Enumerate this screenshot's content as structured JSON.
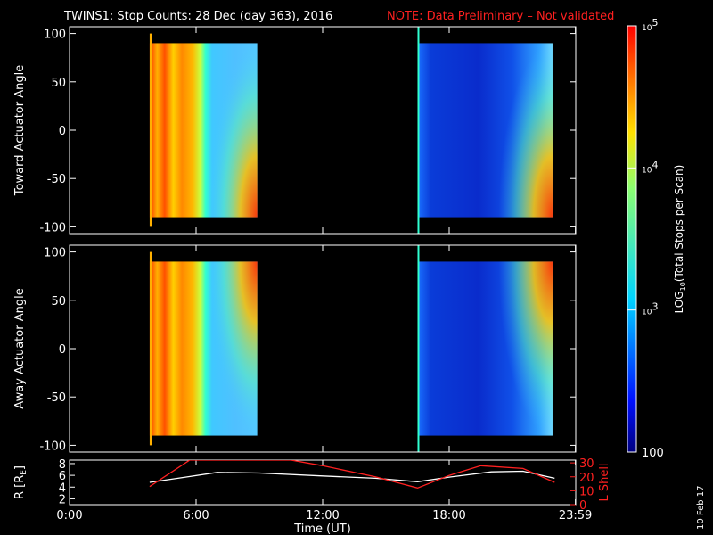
{
  "header": {
    "title": "TWINS1: Stop Counts: 28 Dec (day 363), 2016",
    "note": "NOTE: Data Preliminary – Not validated",
    "note_color": "#ff2020"
  },
  "side_label": "10 Feb 17",
  "chart_data": [
    {
      "type": "heatmap",
      "ylabel": "Toward Actuator Angle",
      "x_range_hours": [
        0,
        24
      ],
      "ylim": [
        -107,
        107
      ],
      "yticks": [
        100,
        50,
        0,
        -50,
        -100
      ],
      "data_blocks": [
        {
          "start_hour": 3.8,
          "end_hour": 8.9,
          "level": "high"
        },
        {
          "start_hour": 16.5,
          "end_hour": 22.9,
          "level": "low"
        }
      ]
    },
    {
      "type": "heatmap",
      "ylabel": "Away Actuator Angle",
      "x_range_hours": [
        0,
        24
      ],
      "ylim": [
        -107,
        107
      ],
      "yticks": [
        100,
        50,
        0,
        -50,
        -100
      ],
      "data_blocks": [
        {
          "start_hour": 3.8,
          "end_hour": 8.9,
          "level": "high"
        },
        {
          "start_hour": 16.5,
          "end_hour": 22.9,
          "level": "low"
        }
      ]
    },
    {
      "type": "line",
      "xlabel": "Time (UT)",
      "x_tick_labels": [
        "0:00",
        "6:00",
        "12:00",
        "18:00",
        "23:59"
      ],
      "x_tick_hours": [
        0,
        6,
        12,
        18,
        23.983
      ],
      "left_axis": {
        "label": "R [R",
        "label_sub": "E",
        "label_end": "]",
        "ticks": [
          8,
          6,
          4,
          2
        ],
        "ylim": [
          1,
          8.6
        ]
      },
      "right_axis": {
        "label": "L Shell",
        "ticks": [
          30,
          20,
          10,
          0
        ],
        "ylim": [
          0,
          32
        ],
        "color": "#ff2020"
      },
      "series": [
        {
          "axis": "left",
          "color": "#ffffff",
          "points": [
            [
              3.8,
              4.8
            ],
            [
              5.5,
              5.7
            ],
            [
              7,
              6.5
            ],
            [
              9,
              6.4
            ],
            [
              12,
              5.9
            ],
            [
              14.5,
              5.5
            ],
            [
              16.5,
              4.9
            ],
            [
              18,
              5.7
            ],
            [
              20,
              6.6
            ],
            [
              21.5,
              6.7
            ],
            [
              23,
              5.5
            ]
          ]
        },
        {
          "axis": "right",
          "color": "#ff2020",
          "points": [
            [
              3.8,
              13
            ],
            [
              5.7,
              32
            ],
            [
              10.5,
              32
            ],
            [
              12,
              28
            ],
            [
              14.5,
              20
            ],
            [
              16.5,
              12
            ],
            [
              18,
              21
            ],
            [
              19.5,
              28
            ],
            [
              21.5,
              26
            ],
            [
              23,
              16
            ]
          ]
        }
      ]
    }
  ],
  "colorbar": {
    "label": "LOG10(Total Stops per Scan)",
    "label_main": "LOG",
    "label_sub": "10",
    "label_rest": "(Total Stops per Scan)",
    "ticks": [
      {
        "base": "10",
        "exp": "5",
        "value": 100000
      },
      {
        "base": "10",
        "exp": "4",
        "value": 10000
      },
      {
        "base": "10",
        "exp": "3",
        "value": 1000
      },
      {
        "base": "100",
        "exp": "",
        "value": 100
      }
    ],
    "range": [
      100,
      100000
    ],
    "scale": "log"
  }
}
